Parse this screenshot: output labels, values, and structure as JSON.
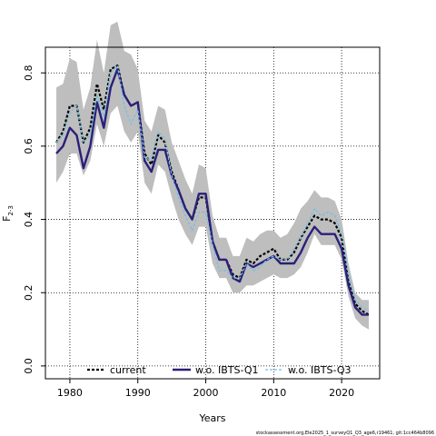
{
  "chart_data": {
    "type": "line",
    "xlabel": "Years",
    "ylabel_main": "F",
    "ylabel_sub": "2-3",
    "xlim": [
      1976.4,
      2025.6
    ],
    "ylim": [
      -0.035,
      0.87
    ],
    "xticks": [
      1980,
      1990,
      2000,
      2010,
      2020
    ],
    "yticks": [
      0.0,
      0.2,
      0.4,
      0.6,
      0.8
    ],
    "ytick_labels": [
      "0.0",
      "0.2",
      "0.4",
      "0.6",
      "0.8"
    ],
    "grid": true,
    "legend_position": "bottom",
    "x": [
      1978,
      1979,
      1980,
      1981,
      1982,
      1983,
      1984,
      1985,
      1986,
      1987,
      1988,
      1989,
      1990,
      1991,
      1992,
      1993,
      1994,
      1995,
      1996,
      1997,
      1998,
      1999,
      2000,
      2001,
      2002,
      2003,
      2004,
      2005,
      2006,
      2007,
      2008,
      2009,
      2010,
      2011,
      2012,
      2013,
      2014,
      2015,
      2016,
      2017,
      2018,
      2019,
      2020,
      2021,
      2022,
      2023,
      2024
    ],
    "band": {
      "color": "#bebebe",
      "lower": [
        0.5,
        0.53,
        0.58,
        0.58,
        0.52,
        0.56,
        0.66,
        0.6,
        0.69,
        0.71,
        0.64,
        0.61,
        0.64,
        0.5,
        0.47,
        0.55,
        0.53,
        0.46,
        0.4,
        0.36,
        0.33,
        0.38,
        0.38,
        0.28,
        0.24,
        0.24,
        0.2,
        0.2,
        0.22,
        0.22,
        0.23,
        0.24,
        0.25,
        0.24,
        0.24,
        0.25,
        0.27,
        0.31,
        0.36,
        0.33,
        0.33,
        0.33,
        0.29,
        0.19,
        0.13,
        0.11,
        0.1
      ],
      "upper": [
        0.76,
        0.77,
        0.84,
        0.83,
        0.7,
        0.76,
        0.89,
        0.8,
        0.93,
        0.94,
        0.86,
        0.85,
        0.81,
        0.67,
        0.64,
        0.71,
        0.7,
        0.61,
        0.56,
        0.51,
        0.47,
        0.55,
        0.54,
        0.41,
        0.35,
        0.35,
        0.3,
        0.3,
        0.35,
        0.34,
        0.36,
        0.37,
        0.37,
        0.35,
        0.36,
        0.39,
        0.43,
        0.45,
        0.48,
        0.46,
        0.46,
        0.45,
        0.4,
        0.28,
        0.2,
        0.18,
        0.18
      ]
    },
    "series": [
      {
        "name": "current",
        "color": "#000000",
        "dash": "3,2",
        "width": 2.2,
        "values": [
          0.61,
          0.64,
          0.71,
          0.71,
          0.61,
          0.65,
          0.77,
          0.7,
          0.81,
          0.82,
          0.74,
          0.71,
          0.72,
          0.58,
          0.55,
          0.63,
          0.61,
          0.53,
          0.48,
          0.43,
          0.4,
          0.46,
          0.46,
          0.34,
          0.29,
          0.29,
          0.25,
          0.24,
          0.29,
          0.28,
          0.3,
          0.31,
          0.32,
          0.29,
          0.29,
          0.31,
          0.35,
          0.38,
          0.41,
          0.4,
          0.4,
          0.39,
          0.35,
          0.23,
          0.17,
          0.15,
          0.14
        ]
      },
      {
        "name": "w.o. IBTS-Q1",
        "color": "#2b1f7a",
        "dash": "",
        "width": 2.4,
        "values": [
          0.58,
          0.6,
          0.65,
          0.63,
          0.54,
          0.6,
          0.72,
          0.65,
          0.76,
          0.81,
          0.74,
          0.71,
          0.72,
          0.56,
          0.53,
          0.59,
          0.59,
          0.52,
          0.48,
          0.43,
          0.4,
          0.47,
          0.47,
          0.34,
          0.29,
          0.29,
          0.24,
          0.23,
          0.28,
          0.27,
          0.28,
          0.29,
          0.3,
          0.28,
          0.28,
          0.28,
          0.31,
          0.35,
          0.38,
          0.36,
          0.36,
          0.36,
          0.32,
          0.22,
          0.16,
          0.14,
          0.14
        ]
      },
      {
        "name": "w.o. IBTS-Q3",
        "color": "#6ec1e4",
        "dash": "3,2",
        "width": 1.3,
        "values": [
          0.61,
          0.63,
          0.69,
          0.71,
          0.61,
          0.63,
          0.74,
          0.68,
          0.8,
          0.82,
          0.71,
          0.66,
          0.7,
          0.57,
          0.56,
          0.64,
          0.62,
          0.52,
          0.46,
          0.41,
          0.37,
          0.42,
          0.42,
          0.33,
          0.26,
          0.26,
          0.24,
          0.24,
          0.28,
          0.26,
          0.27,
          0.29,
          0.3,
          0.29,
          0.29,
          0.32,
          0.35,
          0.39,
          0.43,
          0.41,
          0.42,
          0.41,
          0.36,
          0.25,
          0.18,
          0.16,
          0.15
        ]
      }
    ],
    "footnote": "stockassessment.org,Ele2025_1_surveyQ1_Q3_age6,r19461, git:1cc464b8096"
  }
}
